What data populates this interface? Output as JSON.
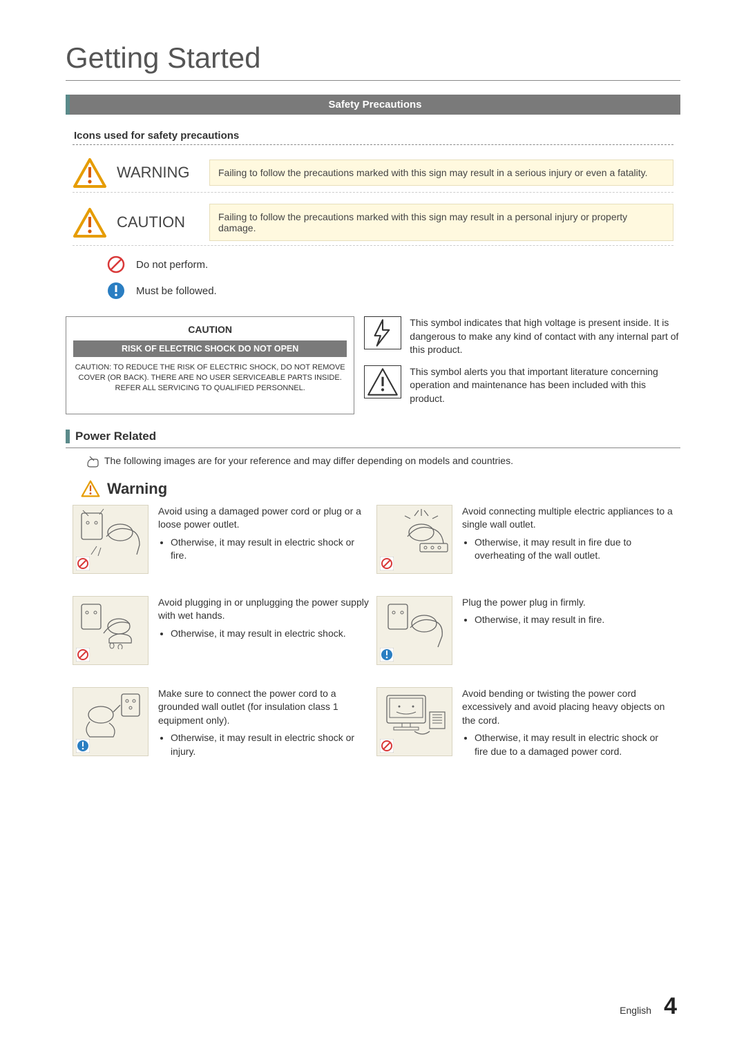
{
  "colors": {
    "section_bar_bg": "#7a7a7a",
    "section_bar_text": "#ffffff",
    "accent_teal": "#5b8a8a",
    "yellow_box_bg": "#fff9df",
    "yellow_box_border": "#e7debb",
    "illustration_bg": "#f3f0e4",
    "illustration_border": "#d9d4c0",
    "triangle_stroke": "#e69c00",
    "triangle_bang": "#d95b00",
    "prohibit_red": "#d93838",
    "follow_blue": "#2a7ec2",
    "text_body": "#333333",
    "dash_border": "#cccccc"
  },
  "page": {
    "title": "Getting Started",
    "section_header": "Safety Precautions",
    "icons_heading": "Icons used for safety precautions",
    "warning_label": "WARNING",
    "warning_text": "Failing to follow the precautions marked with this sign may result in a serious injury or even a fatality.",
    "caution_label": "CAUTION",
    "caution_text": "Failing to follow the precautions marked with this sign may result in a personal injury or property damage.",
    "do_not_perform": "Do not perform.",
    "must_be_followed": "Must be followed.",
    "caution_box": {
      "title": "CAUTION",
      "bar": "RISK OF ELECTRIC SHOCK DO NOT OPEN",
      "text": "CAUTION: TO REDUCE THE RISK OF ELECTRIC SHOCK, DO NOT REMOVE COVER (OR BACK). THERE ARE NO USER SERVICEABLE PARTS INSIDE. REFER ALL SERVICING TO QUALIFIED PERSONNEL."
    },
    "symbol_voltage": "This symbol indicates that high voltage is present inside. It is dangerous to make any kind of contact with any internal part of this product.",
    "symbol_literature": "This symbol alerts you that important literature concerning operation and maintenance has been included with this product.",
    "power_related": "Power Related",
    "note": "The following images are for your reference and may differ depending on models and countries.",
    "warning_heading": "Warning",
    "items": [
      {
        "badge": "prohibit",
        "title": "Avoid using a damaged power cord or plug or a loose power outlet.",
        "bullet": "Otherwise, it may result in electric shock or fire."
      },
      {
        "badge": "prohibit",
        "title": "Avoid connecting multiple electric appliances to a single wall outlet.",
        "bullet": "Otherwise, it may result in fire due to overheating of the wall outlet."
      },
      {
        "badge": "prohibit",
        "title": "Avoid plugging in or unplugging the power supply with wet hands.",
        "bullet": "Otherwise, it may result in electric shock."
      },
      {
        "badge": "follow",
        "title": "Plug the power plug in firmly.",
        "bullet": "Otherwise, it may result in fire."
      },
      {
        "badge": "follow",
        "title": "Make sure to connect the power cord to a grounded wall outlet (for insulation class 1 equipment only).",
        "bullet": "Otherwise, it may result in electric shock or injury."
      },
      {
        "badge": "prohibit",
        "title": "Avoid bending or twisting the power cord excessively and avoid placing heavy objects on the cord.",
        "bullet": "Otherwise, it may result in electric shock or fire due to a damaged power cord."
      }
    ],
    "footer_lang": "English",
    "footer_page": "4"
  }
}
